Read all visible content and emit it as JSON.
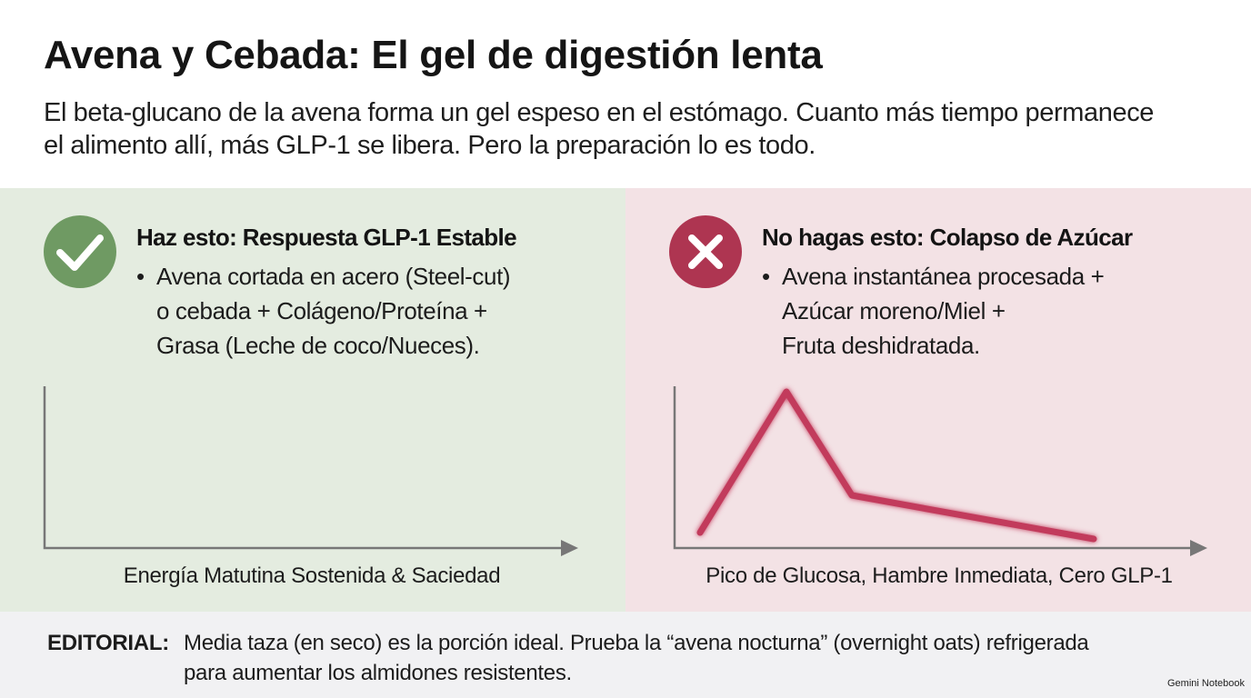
{
  "header": {
    "title": "Avena y Cebada: El gel de digestión lenta",
    "subtitle": [
      "El beta-glucano de la avena forma un gel espeso en el estómago. Cuanto más tiempo permanece",
      "el alimento allí, más GLP-1 se libera. Pero la preparación lo es todo."
    ]
  },
  "panels": [
    {
      "heading": "Haz esto: Respuesta GLP-1 Estable",
      "bullet": [
        "Avena cortada en acero (Steel-cut)",
        "o cebada + Colágeno/Proteína +",
        "Grasa (Leche de coco/Nueces)."
      ],
      "caption": "Energía Matutina Sostenida & Saciedad"
    },
    {
      "heading": "No hagas esto: Colapso de Azúcar",
      "bullet": [
        "Avena instantánea procesada +",
        "Azúcar moreno/Miel +",
        "Fruta deshidratada."
      ],
      "caption": "Pico de Glucosa, Hambre Inmediata, Cero GLP-1"
    }
  ],
  "footer": {
    "label": "EDITORIAL:",
    "text": [
      "Media taza (en seco) es la porción ideal. Prueba la “avena nocturna” (overnight oats) refrigerada",
      "para aumentar los almidones resistentes."
    ],
    "watermark": "Gemini Notebook"
  }
}
